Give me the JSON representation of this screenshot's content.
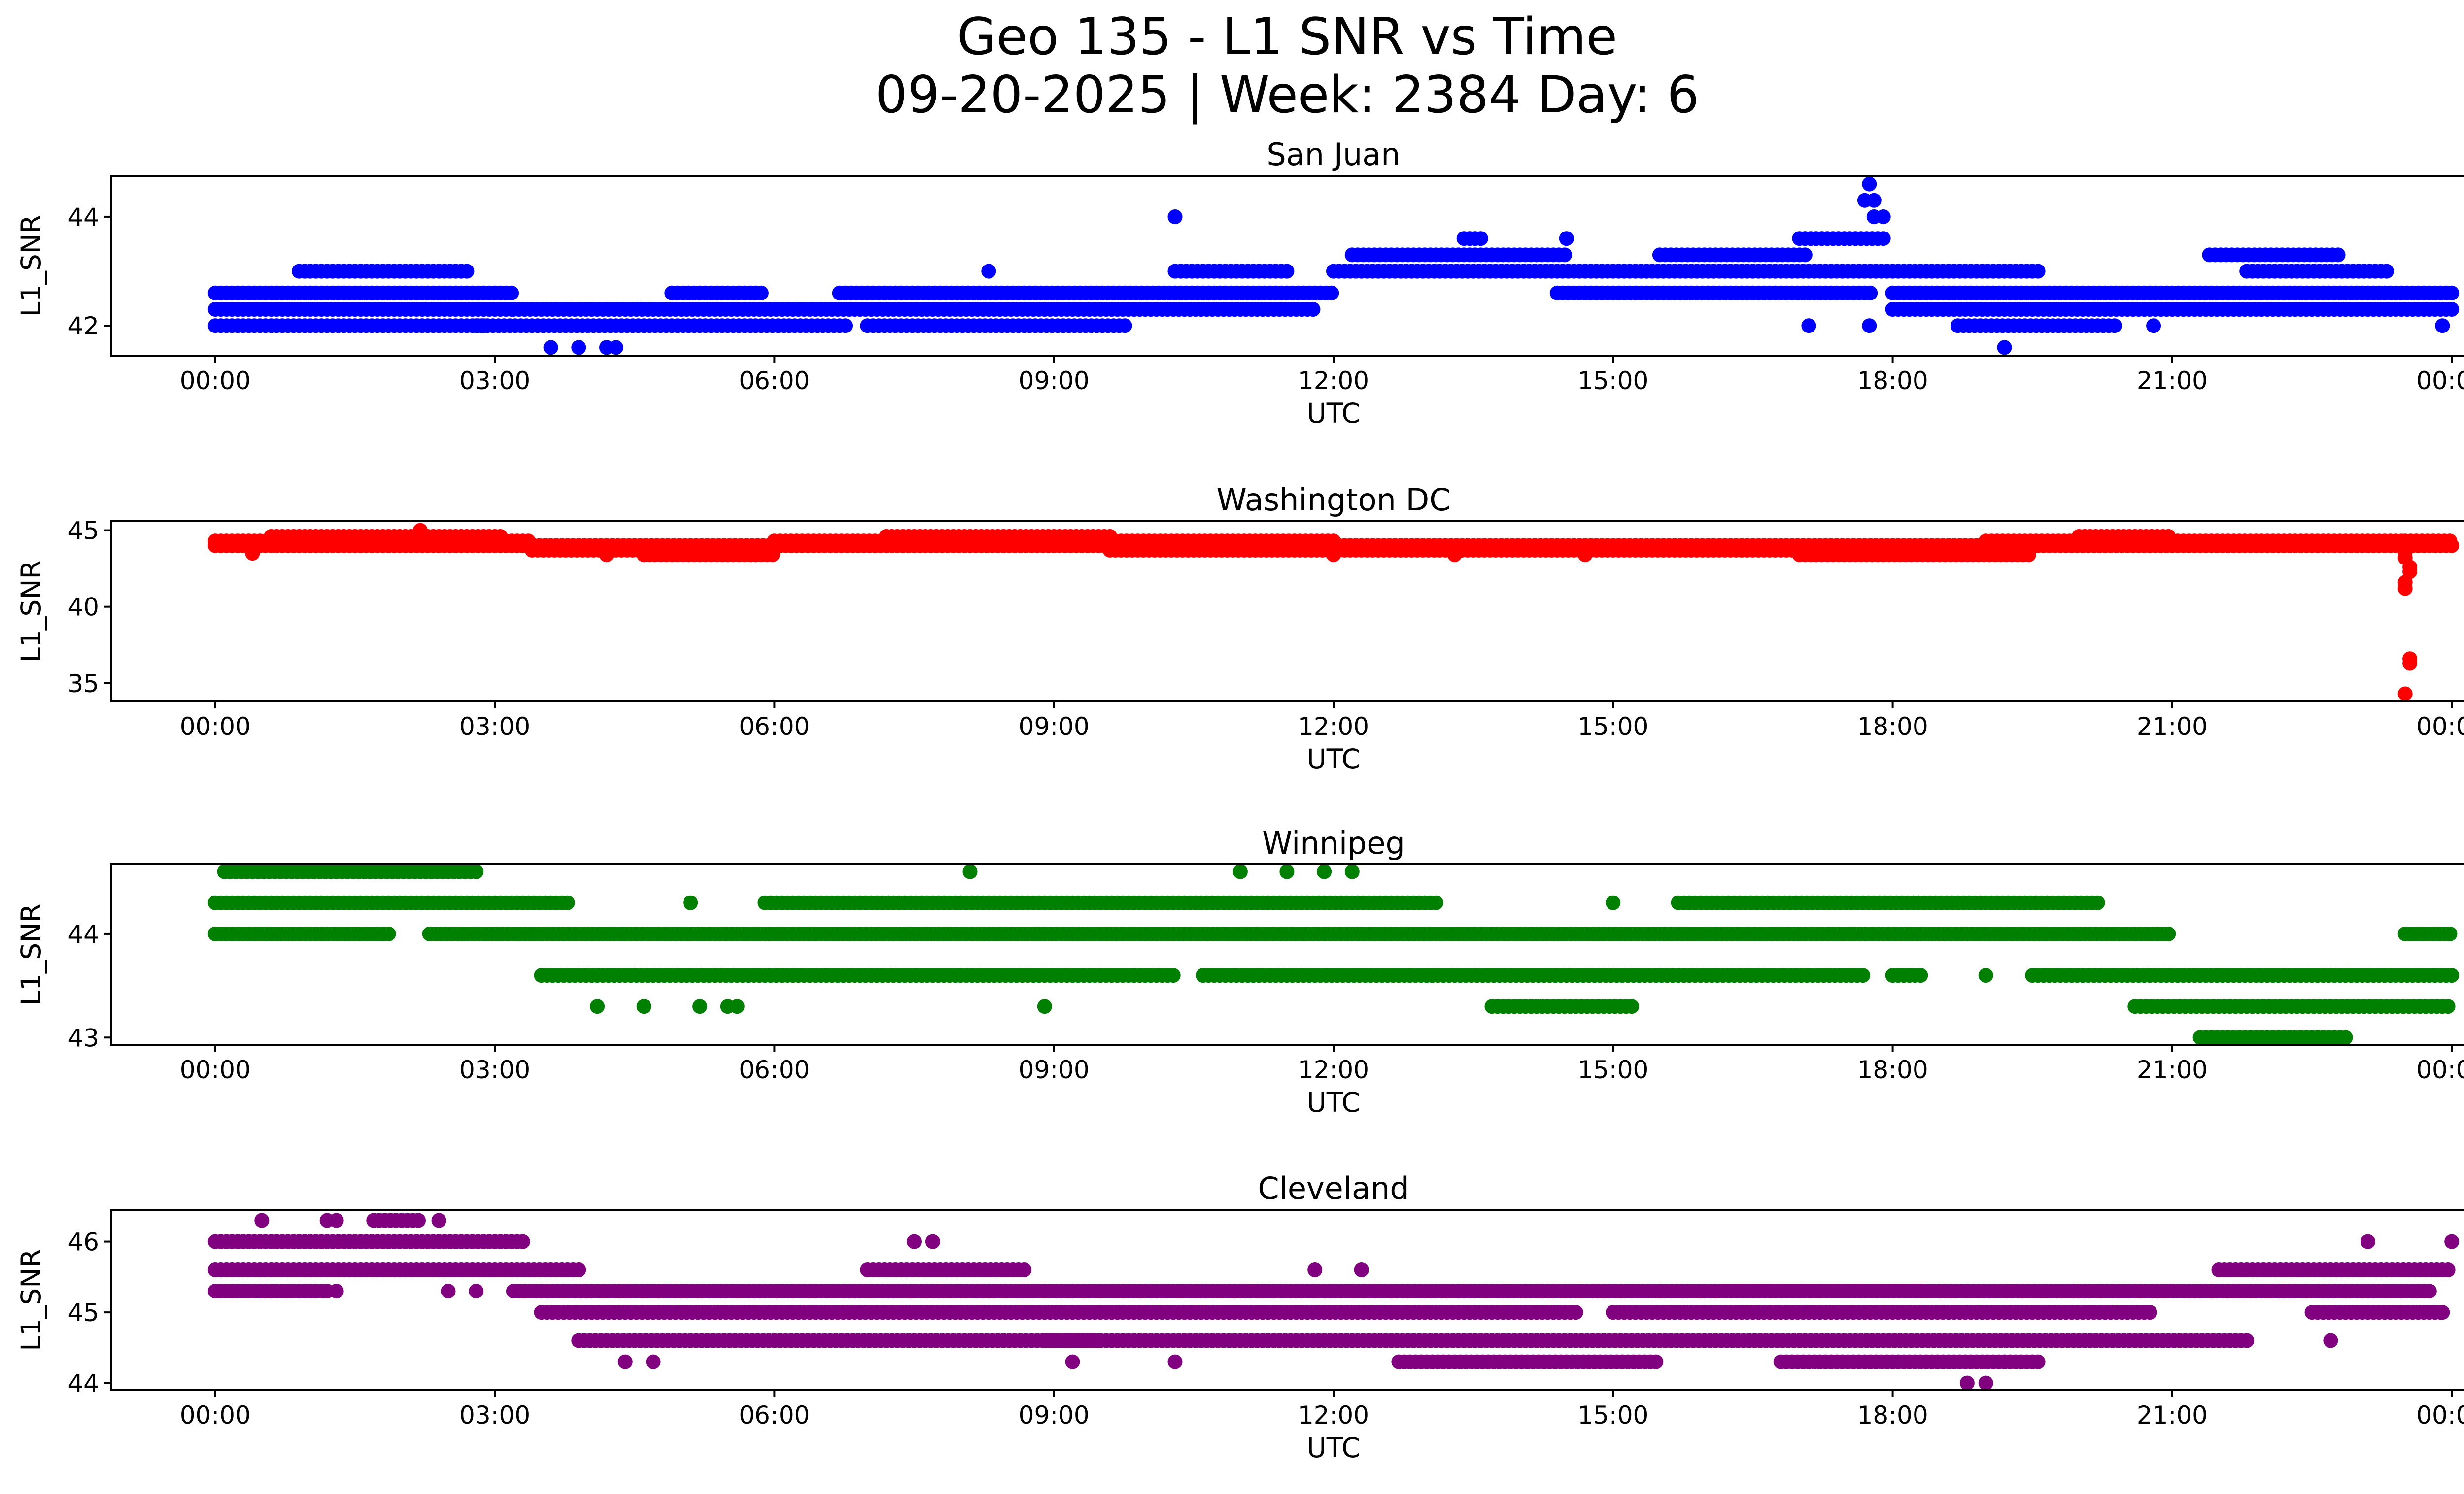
{
  "figure": {
    "title_line1": "Geo 135 - L1 SNR vs Time",
    "title_line2": "09-20-2025 | Week: 2384 Day: 6"
  },
  "chart_data": [
    {
      "type": "scatter",
      "title": "San Juan",
      "xlabel": "UTC",
      "ylabel": "L1_SNR",
      "color": "#0000ff",
      "xlim_hours": [
        -1.12,
        25.12
      ],
      "ylim": [
        41.45,
        44.75
      ],
      "yticks": [
        42,
        44
      ],
      "ytick_labels": [
        "42",
        "44"
      ],
      "xticks_hours": [
        0,
        3,
        6,
        9,
        12,
        15,
        18,
        21,
        24
      ],
      "xtick_labels": [
        "00:00",
        "03:00",
        "06:00",
        "09:00",
        "12:00",
        "15:00",
        "18:00",
        "21:00",
        "00:00"
      ],
      "series": [
        {
          "name": "San Juan",
          "level_segments": [
            [
              0.0,
              2.9,
              42.0
            ],
            [
              0.0,
              3.2,
              42.3
            ],
            [
              0.0,
              3.2,
              42.6
            ],
            [
              0.9,
              2.7,
              43.0
            ],
            [
              2.8,
              6.8,
              42.0
            ],
            [
              3.2,
              11.8,
              42.3
            ],
            [
              4.9,
              5.9,
              42.6
            ],
            [
              6.7,
              12.0,
              42.6
            ],
            [
              7.0,
              9.8,
              42.0
            ],
            [
              10.3,
              11.5,
              43.0
            ],
            [
              12.0,
              19.6,
              43.0
            ],
            [
              12.2,
              14.5,
              43.3
            ],
            [
              13.4,
              13.6,
              43.6
            ],
            [
              14.4,
              17.8,
              42.6
            ],
            [
              15.5,
              17.1,
              43.3
            ],
            [
              18.0,
              24.0,
              42.6
            ],
            [
              18.0,
              24.0,
              42.3
            ],
            [
              18.7,
              20.4,
              42.0
            ],
            [
              21.4,
              22.8,
              43.3
            ],
            [
              21.8,
              23.3,
              43.0
            ],
            [
              17.0,
              17.9,
              43.6
            ]
          ],
          "points": [
            [
              3.6,
              41.6
            ],
            [
              3.9,
              41.6
            ],
            [
              4.2,
              41.6
            ],
            [
              4.3,
              41.6
            ],
            [
              8.3,
              43.0
            ],
            [
              10.3,
              44.0
            ],
            [
              14.5,
              43.6
            ],
            [
              17.75,
              44.6
            ],
            [
              17.7,
              44.3
            ],
            [
              17.8,
              44.3
            ],
            [
              17.8,
              44.0
            ],
            [
              17.9,
              44.0
            ],
            [
              17.75,
              42.0
            ],
            [
              19.2,
              41.6
            ],
            [
              17.1,
              42.0
            ],
            [
              20.8,
              42.0
            ],
            [
              23.9,
              42.0
            ]
          ]
        }
      ]
    },
    {
      "type": "scatter",
      "title": "Washington DC",
      "xlabel": "UTC",
      "ylabel": "L1_SNR",
      "color": "#ff0000",
      "xlim_hours": [
        -1.12,
        25.12
      ],
      "ylim": [
        33.8,
        45.6
      ],
      "yticks": [
        35,
        40,
        45
      ],
      "ytick_labels": [
        "35",
        "40",
        "45"
      ],
      "xticks_hours": [
        0,
        3,
        6,
        9,
        12,
        15,
        18,
        21,
        24
      ],
      "xtick_labels": [
        "00:00",
        "03:00",
        "06:00",
        "09:00",
        "12:00",
        "15:00",
        "18:00",
        "21:00",
        "00:00"
      ],
      "series": [
        {
          "name": "Washington DC",
          "level_segments": [
            [
              0.0,
              24.0,
              44.0
            ],
            [
              0.0,
              3.4,
              44.3
            ],
            [
              0.6,
              3.1,
              44.6
            ],
            [
              3.4,
              6.0,
              43.7
            ],
            [
              4.6,
              6.0,
              43.4
            ],
            [
              6.0,
              12.0,
              44.3
            ],
            [
              7.2,
              9.6,
              44.6
            ],
            [
              9.6,
              18.0,
              43.7
            ],
            [
              17.0,
              19.5,
              43.4
            ],
            [
              19.0,
              21.0,
              44.3
            ],
            [
              20.0,
              21.0,
              44.6
            ],
            [
              21.0,
              23.5,
              44.3
            ],
            [
              23.5,
              24.0,
              44.3
            ]
          ],
          "points": [
            [
              2.2,
              45.0
            ],
            [
              0.4,
              43.5
            ],
            [
              4.2,
              43.4
            ],
            [
              12.0,
              43.4
            ],
            [
              13.3,
              43.4
            ],
            [
              14.7,
              43.4
            ],
            [
              23.5,
              43.6
            ],
            [
              23.5,
              43.2
            ],
            [
              23.55,
              42.6
            ],
            [
              23.55,
              42.3
            ],
            [
              23.5,
              41.6
            ],
            [
              23.5,
              41.2
            ],
            [
              23.55,
              36.6
            ],
            [
              23.55,
              36.3
            ],
            [
              23.5,
              34.3
            ]
          ]
        }
      ]
    },
    {
      "type": "scatter",
      "title": "Winnipeg",
      "xlabel": "UTC",
      "ylabel": "L1_SNR",
      "color": "#008000",
      "xlim_hours": [
        -1.12,
        25.12
      ],
      "ylim": [
        42.93,
        44.67
      ],
      "yticks": [
        43,
        44
      ],
      "ytick_labels": [
        "43",
        "44"
      ],
      "xticks_hours": [
        0,
        3,
        6,
        9,
        12,
        15,
        18,
        21,
        24
      ],
      "xtick_labels": [
        "00:00",
        "03:00",
        "06:00",
        "09:00",
        "12:00",
        "15:00",
        "18:00",
        "21:00",
        "00:00"
      ],
      "series": [
        {
          "name": "Winnipeg",
          "level_segments": [
            [
              0.0,
              1.9,
              44.0
            ],
            [
              2.3,
              21.0,
              44.0
            ],
            [
              0.0,
              3.8,
              44.3
            ],
            [
              5.9,
              13.1,
              44.3
            ],
            [
              15.7,
              20.2,
              44.3
            ],
            [
              0.1,
              2.8,
              44.6
            ],
            [
              3.5,
              10.3,
              43.6
            ],
            [
              10.6,
              13.1,
              43.6
            ],
            [
              13.0,
              17.7,
              43.6
            ],
            [
              18.0,
              18.3,
              43.6
            ],
            [
              19.5,
              24.0,
              43.6
            ],
            [
              13.7,
              15.2,
              43.3
            ],
            [
              20.6,
              24.0,
              43.3
            ],
            [
              21.3,
              22.9,
              43.0
            ],
            [
              23.5,
              24.0,
              44.0
            ]
          ],
          "points": [
            [
              4.1,
              43.3
            ],
            [
              4.6,
              43.3
            ],
            [
              5.1,
              44.3
            ],
            [
              5.2,
              43.3
            ],
            [
              5.5,
              43.3
            ],
            [
              5.6,
              43.3
            ],
            [
              8.1,
              44.6
            ],
            [
              8.9,
              43.3
            ],
            [
              11.0,
              44.6
            ],
            [
              11.5,
              44.6
            ],
            [
              11.9,
              44.6
            ],
            [
              12.2,
              44.6
            ],
            [
              15.0,
              44.3
            ],
            [
              19.0,
              43.6
            ]
          ]
        }
      ]
    },
    {
      "type": "scatter",
      "title": "Cleveland",
      "xlabel": "UTC",
      "ylabel": "L1_SNR",
      "color": "#800080",
      "xlim_hours": [
        -1.12,
        25.12
      ],
      "ylim": [
        43.9,
        46.45
      ],
      "yticks": [
        44,
        45,
        46
      ],
      "ytick_labels": [
        "44",
        "45",
        "46"
      ],
      "xticks_hours": [
        0,
        3,
        6,
        9,
        12,
        15,
        18,
        21,
        24
      ],
      "xtick_labels": [
        "00:00",
        "03:00",
        "06:00",
        "09:00",
        "12:00",
        "15:00",
        "18:00",
        "21:00",
        "00:00"
      ],
      "series": [
        {
          "name": "Cleveland",
          "level_segments": [
            [
              0.0,
              3.3,
              46.0
            ],
            [
              0.0,
              3.9,
              45.6
            ],
            [
              0.0,
              1.2,
              45.3
            ],
            [
              3.2,
              21.0,
              45.3
            ],
            [
              3.5,
              14.6,
              45.0
            ],
            [
              15.0,
              20.8,
              45.0
            ],
            [
              21.0,
              23.8,
              45.3
            ],
            [
              21.5,
              24.0,
              45.6
            ],
            [
              3.9,
              9.5,
              44.6
            ],
            [
              8.9,
              21.8,
              44.6
            ],
            [
              12.7,
              15.5,
              44.3
            ],
            [
              16.8,
              19.6,
              44.3
            ],
            [
              7.0,
              8.7,
              45.6
            ],
            [
              16.2,
              18.3,
              45.3
            ],
            [
              1.7,
              2.2,
              46.3
            ],
            [
              22.5,
              23.9,
              45.0
            ]
          ],
          "points": [
            [
              0.5,
              46.3
            ],
            [
              1.2,
              46.3
            ],
            [
              1.3,
              46.3
            ],
            [
              2.4,
              46.3
            ],
            [
              2.5,
              45.3
            ],
            [
              2.8,
              45.3
            ],
            [
              1.3,
              45.3
            ],
            [
              4.4,
              44.3
            ],
            [
              4.7,
              44.3
            ],
            [
              7.5,
              46.0
            ],
            [
              7.7,
              46.0
            ],
            [
              9.2,
              44.3
            ],
            [
              10.3,
              44.3
            ],
            [
              11.8,
              45.6
            ],
            [
              12.3,
              45.6
            ],
            [
              15.2,
              45.3
            ],
            [
              18.8,
              44.0
            ],
            [
              19.0,
              44.0
            ],
            [
              22.7,
              44.6
            ],
            [
              23.1,
              46.0
            ],
            [
              24.0,
              46.0
            ],
            [
              23.9,
              45.0
            ]
          ]
        }
      ]
    }
  ]
}
